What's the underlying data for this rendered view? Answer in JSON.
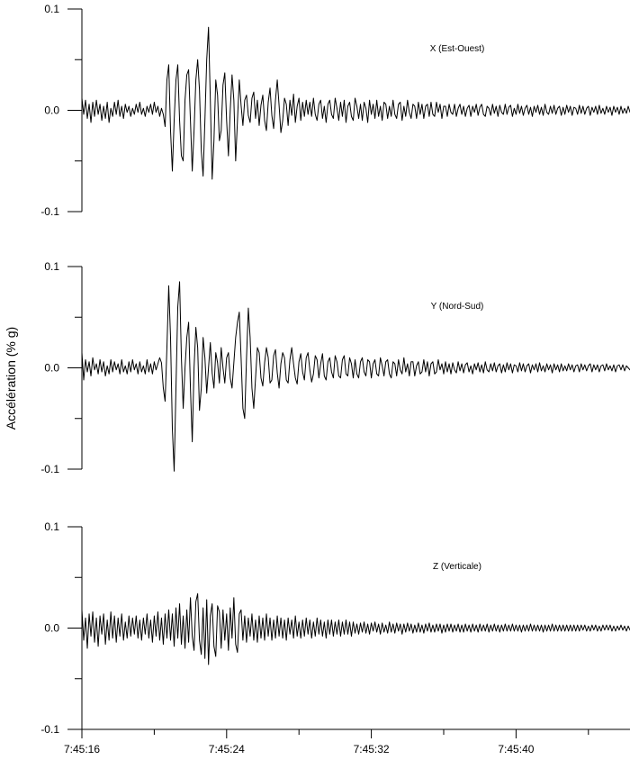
{
  "chart_data": {
    "type": "line",
    "ylabel": "Accélération (% g)",
    "x_start": "7:45:16",
    "sample_interval_s": 0.1,
    "x_ticks": [
      "7:45:16",
      "7:45:24",
      "7:45:32",
      "7:45:40"
    ],
    "grid": false,
    "panels": [
      {
        "title": "X (Est-Ouest)",
        "ylim": [
          -0.1,
          0.1
        ],
        "y_ticks": [
          "0.1",
          "0.0",
          "-0.1"
        ],
        "values": [
          0.012,
          -0.004,
          0.01,
          -0.008,
          0.006,
          -0.012,
          0.008,
          -0.006,
          0.01,
          -0.004,
          0.006,
          -0.01,
          0.004,
          -0.008,
          0.008,
          -0.012,
          0.002,
          -0.006,
          0.008,
          -0.004,
          0.01,
          -0.006,
          0.004,
          -0.008,
          0.006,
          -0.002,
          0.004,
          -0.006,
          0.002,
          -0.004,
          0.006,
          -0.002,
          0.008,
          -0.004,
          0.002,
          -0.006,
          0.004,
          -0.002,
          0.006,
          -0.004,
          0.008,
          -0.002,
          0.004,
          -0.006,
          0.002,
          -0.004,
          -0.016,
          0.03,
          0.045,
          -0.02,
          -0.06,
          -0.01,
          0.03,
          0.045,
          -0.01,
          -0.045,
          -0.05,
          0.01,
          0.035,
          0.04,
          -0.01,
          -0.06,
          -0.02,
          0.03,
          0.05,
          0.02,
          -0.04,
          -0.065,
          -0.01,
          0.05,
          0.082,
          0.01,
          -0.068,
          -0.03,
          0.03,
          0.015,
          -0.03,
          -0.02,
          0.025,
          0.037,
          -0.01,
          -0.045,
          0.0,
          0.035,
          0.01,
          -0.05,
          -0.01,
          0.03,
          0.005,
          -0.015,
          0.01,
          0.015,
          -0.005,
          -0.012,
          0.012,
          0.018,
          -0.008,
          0.01,
          -0.015,
          0.005,
          0.015,
          -0.01,
          -0.02,
          0.008,
          0.022,
          -0.005,
          -0.018,
          0.01,
          0.03,
          0.005,
          -0.022,
          -0.01,
          0.012,
          0.006,
          -0.015,
          0.01,
          -0.005,
          0.016,
          -0.012,
          0.004,
          0.012,
          -0.01,
          0.008,
          -0.006,
          0.01,
          -0.004,
          0.008,
          -0.006,
          0.012,
          -0.004,
          -0.01,
          0.006,
          0.01,
          -0.008,
          0.004,
          -0.012,
          0.006,
          0.01,
          -0.004,
          -0.008,
          0.012,
          0.002,
          -0.01,
          0.008,
          -0.006,
          0.01,
          -0.012,
          0.004,
          0.008,
          -0.006,
          -0.01,
          0.012,
          0.004,
          -0.008,
          0.006,
          -0.01,
          0.008,
          0.002,
          -0.012,
          0.01,
          -0.004,
          0.006,
          -0.008,
          0.01,
          -0.006,
          0.004,
          -0.01,
          0.008,
          0.006,
          -0.008,
          0.004,
          -0.006,
          0.01,
          -0.004,
          -0.008,
          0.006,
          0.008,
          -0.01,
          0.004,
          -0.006,
          0.01,
          -0.002,
          -0.008,
          0.006,
          0.004,
          -0.008,
          0.008,
          -0.004,
          0.006,
          -0.008,
          0.004,
          0.006,
          -0.006,
          0.008,
          -0.004,
          -0.006,
          0.008,
          -0.002,
          0.006,
          -0.008,
          0.004,
          0.004,
          -0.006,
          0.006,
          -0.002,
          -0.004,
          0.006,
          -0.006,
          0.002,
          0.006,
          -0.004,
          0.004,
          -0.006,
          0.002,
          0.005,
          -0.006,
          0.004,
          -0.002,
          0.006,
          -0.005,
          0.003,
          0.006,
          -0.004,
          -0.006,
          0.004,
          0.002,
          -0.005,
          0.006,
          -0.003,
          0.004,
          -0.006,
          0.005,
          -0.002,
          -0.004,
          0.006,
          -0.004,
          0.003,
          0.005,
          -0.006,
          0.002,
          -0.004,
          0.006,
          -0.003,
          0.004,
          -0.005,
          0.002,
          0.005,
          -0.004,
          0.003,
          -0.006,
          0.004,
          -0.002,
          0.005,
          -0.004,
          0.003,
          -0.005,
          0.006,
          -0.002,
          -0.004,
          0.004,
          -0.003,
          0.005,
          -0.004,
          0.002,
          0.004,
          -0.005,
          0.003,
          -0.004,
          0.005,
          -0.002,
          0.004,
          -0.005,
          0.003,
          0.002,
          -0.004,
          0.005,
          -0.003,
          0.004,
          -0.004,
          0.002,
          0.004,
          -0.005,
          0.003,
          -0.002,
          0.004,
          -0.004,
          0.005,
          -0.003,
          0.002,
          -0.004,
          0.004,
          -0.002,
          0.003,
          -0.005,
          0.004,
          -0.002,
          0.003,
          -0.004,
          0.004,
          -0.003,
          0.002,
          -0.003,
          0.004,
          -0.002,
          0.0
        ]
      },
      {
        "title": "Y (Nord-Sud)",
        "ylim": [
          -0.1,
          0.1
        ],
        "y_ticks": [
          "0.1",
          "0.0",
          "-0.1"
        ],
        "values": [
          0.015,
          -0.012,
          0.008,
          -0.004,
          0.006,
          -0.008,
          0.01,
          -0.002,
          0.004,
          -0.006,
          0.008,
          -0.004,
          0.006,
          -0.008,
          0.002,
          -0.006,
          0.008,
          -0.004,
          0.006,
          -0.002,
          0.004,
          -0.006,
          0.008,
          -0.004,
          0.002,
          -0.006,
          0.006,
          -0.004,
          0.008,
          -0.002,
          0.004,
          -0.006,
          0.006,
          -0.004,
          0.002,
          -0.006,
          0.008,
          -0.004,
          0.004,
          -0.006,
          0.006,
          -0.002,
          0.004,
          0.01,
          0.005,
          -0.02,
          -0.033,
          0.02,
          0.081,
          0.03,
          -0.06,
          -0.102,
          -0.02,
          0.06,
          0.085,
          0.01,
          -0.04,
          0.0,
          0.03,
          0.045,
          -0.02,
          -0.073,
          0.0,
          0.04,
          0.02,
          -0.042,
          -0.02,
          0.03,
          0.01,
          -0.025,
          0.0,
          0.025,
          -0.005,
          -0.02,
          0.015,
          0.005,
          -0.015,
          0.02,
          0.0,
          -0.015,
          0.01,
          0.015,
          -0.01,
          -0.02,
          0.005,
          0.03,
          0.045,
          0.055,
          0.01,
          -0.04,
          -0.05,
          0.01,
          0.059,
          0.03,
          -0.02,
          -0.04,
          -0.01,
          0.02,
          0.015,
          -0.01,
          -0.018,
          0.005,
          0.02,
          0.01,
          -0.015,
          -0.012,
          0.012,
          0.018,
          -0.005,
          -0.02,
          0.004,
          0.015,
          0.01,
          -0.012,
          -0.015,
          0.008,
          0.02,
          0.004,
          -0.01,
          -0.016,
          0.006,
          0.014,
          -0.004,
          -0.012,
          0.01,
          0.015,
          -0.002,
          -0.014,
          -0.006,
          0.012,
          0.008,
          -0.01,
          0.004,
          0.014,
          -0.008,
          -0.012,
          0.006,
          0.01,
          -0.004,
          -0.01,
          0.012,
          0.006,
          -0.008,
          -0.01,
          0.008,
          0.012,
          -0.006,
          -0.008,
          0.01,
          0.004,
          -0.01,
          0.008,
          -0.006,
          -0.01,
          0.006,
          0.01,
          -0.004,
          -0.008,
          0.008,
          0.006,
          -0.01,
          0.004,
          0.008,
          -0.006,
          -0.008,
          0.01,
          0.002,
          -0.008,
          0.006,
          0.008,
          -0.006,
          -0.01,
          0.006,
          0.004,
          -0.008,
          0.008,
          -0.002,
          -0.006,
          0.01,
          -0.004,
          0.004,
          -0.008,
          0.006,
          0.006,
          -0.008,
          0.002,
          0.006,
          -0.006,
          -0.004,
          0.008,
          -0.004,
          0.006,
          -0.008,
          0.004,
          0.006,
          -0.006,
          -0.004,
          0.008,
          -0.002,
          0.004,
          -0.006,
          0.006,
          -0.004,
          0.004,
          -0.006,
          0.005,
          -0.002,
          -0.005,
          0.006,
          -0.003,
          0.004,
          -0.005,
          0.003,
          0.005,
          -0.004,
          0.002,
          -0.006,
          0.004,
          -0.002,
          0.005,
          -0.004,
          0.003,
          -0.005,
          0.006,
          -0.002,
          -0.004,
          0.004,
          -0.003,
          0.005,
          -0.004,
          0.002,
          0.004,
          -0.005,
          0.003,
          -0.004,
          0.005,
          -0.002,
          0.004,
          -0.005,
          0.003,
          0.002,
          -0.004,
          0.005,
          -0.003,
          0.004,
          -0.004,
          0.002,
          0.004,
          -0.005,
          0.003,
          -0.002,
          0.004,
          -0.004,
          0.005,
          -0.003,
          0.002,
          -0.004,
          0.004,
          -0.002,
          0.003,
          -0.005,
          0.004,
          -0.002,
          0.003,
          -0.004,
          0.004,
          -0.003,
          0.002,
          -0.003,
          0.004,
          -0.002,
          0.003,
          -0.004,
          0.002,
          0.003,
          -0.004,
          0.004,
          -0.002,
          0.003,
          -0.003,
          0.002,
          0.004,
          -0.004,
          0.003,
          -0.002,
          0.003,
          -0.004,
          0.002,
          0.003,
          -0.003,
          0.004,
          -0.002,
          0.002,
          -0.003,
          0.003,
          -0.004,
          0.002,
          0.003,
          -0.002,
          0.003,
          -0.003,
          0.002,
          0.0,
          -0.002,
          0.002
        ]
      },
      {
        "title": "Z (Verticale)",
        "ylim": [
          -0.1,
          0.1
        ],
        "y_ticks": [
          "0.1",
          "0.0",
          "-0.1"
        ],
        "values": [
          0.018,
          -0.012,
          0.01,
          -0.02,
          0.014,
          -0.008,
          0.016,
          -0.014,
          0.01,
          -0.018,
          0.012,
          -0.006,
          0.014,
          -0.016,
          0.008,
          -0.012,
          0.016,
          -0.01,
          0.012,
          -0.014,
          0.01,
          -0.008,
          0.014,
          -0.012,
          0.006,
          -0.01,
          0.012,
          -0.008,
          0.01,
          -0.006,
          0.012,
          -0.01,
          0.008,
          -0.012,
          0.01,
          -0.006,
          0.014,
          -0.01,
          0.008,
          -0.014,
          0.012,
          -0.008,
          0.016,
          -0.012,
          0.01,
          -0.016,
          0.014,
          -0.01,
          0.018,
          -0.012,
          0.014,
          -0.018,
          0.02,
          -0.01,
          0.024,
          -0.016,
          0.012,
          -0.02,
          0.018,
          -0.014,
          0.03,
          -0.008,
          -0.022,
          0.026,
          0.034,
          -0.012,
          -0.026,
          0.02,
          -0.03,
          0.028,
          -0.036,
          0.012,
          0.024,
          -0.018,
          -0.028,
          0.022,
          0.016,
          -0.02,
          0.018,
          -0.012,
          0.014,
          -0.022,
          0.02,
          -0.01,
          0.03,
          -0.016,
          -0.024,
          0.014,
          0.018,
          -0.012,
          0.012,
          -0.014,
          0.01,
          -0.008,
          0.014,
          -0.012,
          0.008,
          -0.014,
          0.012,
          -0.01,
          0.01,
          -0.012,
          0.014,
          -0.008,
          0.01,
          -0.012,
          0.008,
          -0.01,
          0.012,
          -0.008,
          0.01,
          -0.01,
          0.008,
          -0.012,
          0.01,
          -0.006,
          0.008,
          -0.01,
          0.012,
          -0.008,
          0.006,
          -0.01,
          0.008,
          -0.008,
          0.01,
          -0.006,
          0.008,
          -0.01,
          0.006,
          -0.008,
          0.01,
          -0.006,
          0.008,
          -0.008,
          0.006,
          -0.01,
          0.008,
          -0.006,
          0.008,
          -0.008,
          0.006,
          -0.006,
          0.008,
          -0.008,
          0.006,
          -0.006,
          0.008,
          -0.006,
          0.006,
          -0.008,
          0.006,
          -0.005,
          0.004,
          -0.006,
          0.005,
          -0.004,
          0.006,
          -0.005,
          0.004,
          -0.006,
          0.005,
          -0.003,
          0.006,
          -0.004,
          0.004,
          -0.006,
          0.005,
          -0.004,
          0.003,
          -0.005,
          0.006,
          -0.004,
          0.004,
          -0.005,
          0.005,
          -0.003,
          0.004,
          -0.006,
          0.004,
          -0.004,
          0.005,
          -0.003,
          0.004,
          -0.005,
          0.003,
          -0.004,
          0.005,
          -0.004,
          0.003,
          -0.005,
          0.004,
          -0.003,
          0.005,
          -0.004,
          0.003,
          -0.004,
          0.004,
          -0.003,
          0.004,
          -0.005,
          0.003,
          -0.004,
          0.004,
          -0.003,
          0.004,
          -0.004,
          0.003,
          -0.003,
          0.004,
          -0.004,
          0.003,
          -0.004,
          0.004,
          -0.003,
          0.003,
          -0.004,
          0.004,
          -0.003,
          0.003,
          -0.004,
          0.004,
          -0.003,
          0.003,
          -0.003,
          0.004,
          -0.004,
          0.003,
          -0.003,
          0.004,
          -0.003,
          0.003,
          -0.004,
          0.003,
          -0.003,
          0.004,
          -0.003,
          0.003,
          -0.003,
          0.004,
          -0.003,
          0.003,
          -0.003,
          0.003,
          -0.004,
          0.003,
          -0.003,
          0.003,
          -0.003,
          0.004,
          -0.003,
          0.003,
          -0.003,
          0.003,
          -0.003,
          0.003,
          -0.004,
          0.003,
          -0.003,
          0.003,
          -0.003,
          0.004,
          -0.003,
          0.003,
          -0.003,
          0.003,
          -0.003,
          0.003,
          -0.003,
          0.003,
          -0.003,
          0.003,
          -0.003,
          0.003,
          -0.003,
          0.003,
          -0.003,
          0.003,
          -0.002,
          0.003,
          -0.003,
          0.002,
          -0.003,
          0.003,
          -0.002,
          0.003,
          -0.003,
          0.002,
          -0.003,
          0.003,
          -0.002,
          0.003,
          -0.002,
          0.003,
          -0.003,
          0.002,
          -0.003,
          0.002,
          -0.002,
          0.003,
          -0.002,
          0.002,
          -0.003,
          0.002,
          -0.002,
          0.002
        ]
      }
    ]
  }
}
